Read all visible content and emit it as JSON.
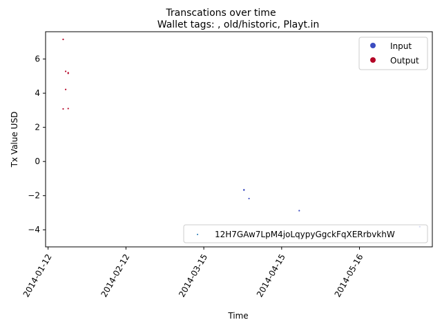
{
  "chart_data": {
    "type": "scatter",
    "suptitle": "Transcations over time",
    "title": "Wallet tags: , old/historic, Playt.in",
    "xlabel": "Time",
    "ylabel": "Tx Value USD",
    "x_range": [
      "2014-01-11",
      "2014-06-14"
    ],
    "ylim": [
      -5.0,
      7.6
    ],
    "x_ticks": [
      "2014-01-12",
      "2014-02-12",
      "2014-03-15",
      "2014-04-15",
      "2014-05-16"
    ],
    "y_ticks": [
      -4,
      -2,
      0,
      2,
      4,
      6
    ],
    "grid": false,
    "legend_top": {
      "placement": "top-right",
      "entries": [
        {
          "label": "Input",
          "color": "#3b4cc0"
        },
        {
          "label": "Output",
          "color": "#b40426"
        }
      ]
    },
    "legend_bottom": {
      "placement": "bottom-right",
      "entries": [
        {
          "label": "12H7GAw7LpM4joLqypyGgckFqXERrbvkhW",
          "color": "#1f77b4"
        }
      ]
    },
    "series": [
      {
        "name": "Output",
        "color": "#b40426",
        "points": [
          {
            "x": "2014-01-18",
            "y": 7.15
          },
          {
            "x": "2014-01-19",
            "y": 5.28
          },
          {
            "x": "2014-01-20",
            "y": 5.2
          },
          {
            "x": "2014-01-20",
            "y": 5.16
          },
          {
            "x": "2014-01-19",
            "y": 4.22
          },
          {
            "x": "2014-01-18",
            "y": 3.08
          },
          {
            "x": "2014-01-20",
            "y": 3.1
          }
        ]
      },
      {
        "name": "Input",
        "color": "#3b4cc0",
        "points": [
          {
            "x": "2014-03-31",
            "y": -1.65
          },
          {
            "x": "2014-03-31",
            "y": -1.68
          },
          {
            "x": "2014-04-02",
            "y": -2.17
          },
          {
            "x": "2014-04-22",
            "y": -2.88
          },
          {
            "x": "2014-06-09",
            "y": -3.82
          }
        ]
      }
    ]
  }
}
